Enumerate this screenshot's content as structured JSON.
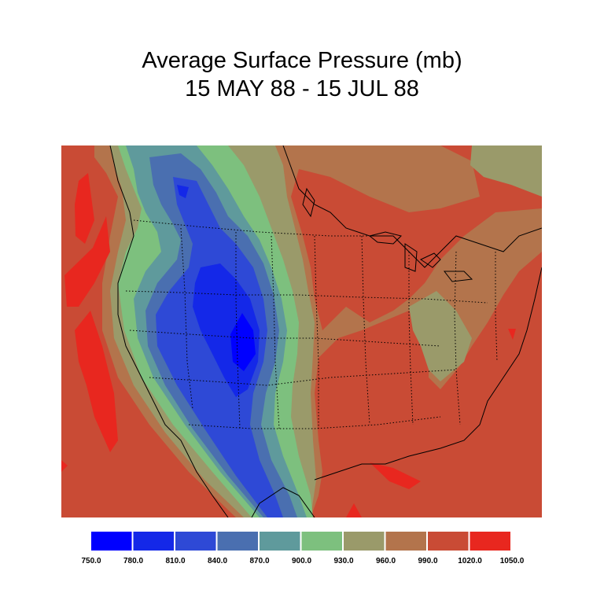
{
  "title": {
    "line1": "Average Surface Pressure (mb)",
    "line2": "15 MAY 88 - 15 JUL 88"
  },
  "legend": {
    "colors": [
      "#0000ff",
      "#1428e8",
      "#2e49d6",
      "#4a6fb0",
      "#5f9a9c",
      "#7dc07e",
      "#9a9a6a",
      "#b3744c",
      "#c94b35",
      "#e8271f"
    ],
    "ticks": [
      "750.0",
      "780.0",
      "810.0",
      "840.0",
      "870.0",
      "900.0",
      "930.0",
      "960.0",
      "990.0",
      "1020.0",
      "1050.0"
    ]
  }
}
